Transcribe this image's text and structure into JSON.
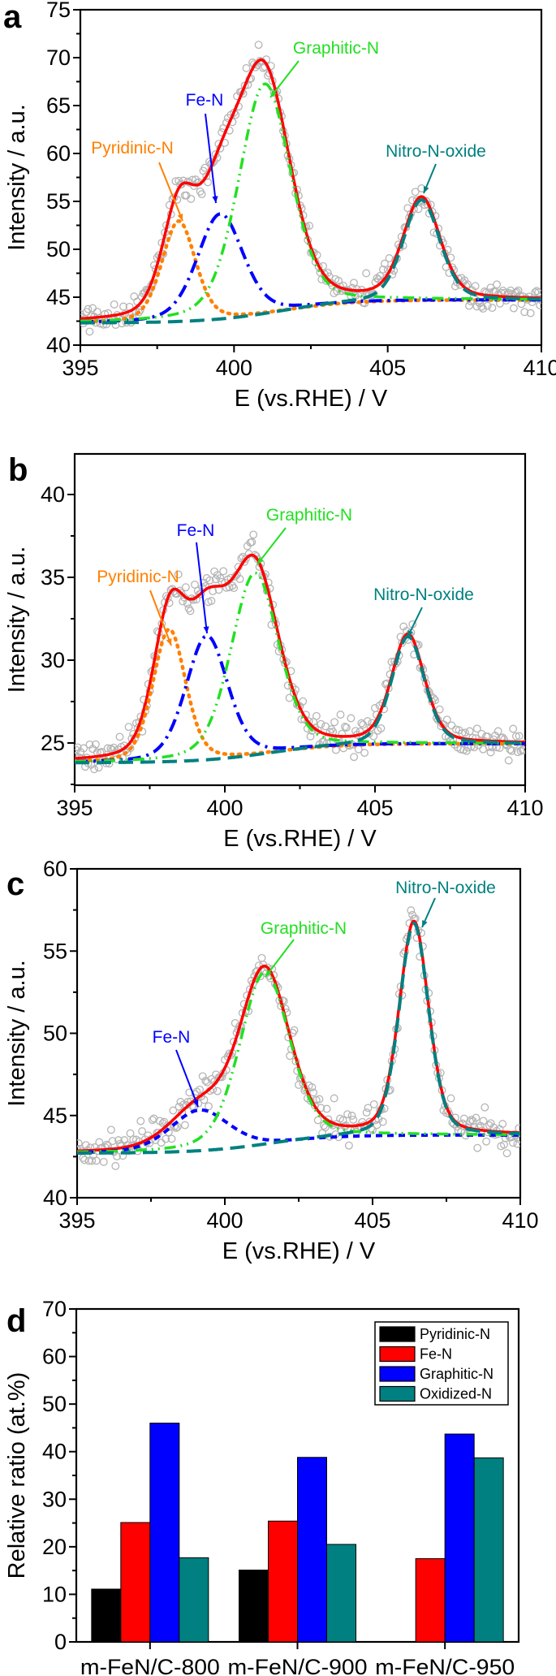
{
  "chart_data": [
    {
      "type": "line",
      "panel_label": "a",
      "xlabel": "E (vs.RHE) / V",
      "ylabel": "Intensity / a.u.",
      "xlim": [
        395,
        410
      ],
      "ylim": [
        40,
        75
      ],
      "xticks": [
        395,
        400,
        405,
        410
      ],
      "yticks": [
        40,
        45,
        50,
        55,
        60,
        65,
        70,
        75
      ],
      "baseline": {
        "start": 42.3,
        "end": 44.7
      },
      "series": [
        {
          "name": "Pyridinic-N",
          "color": "#ff8000",
          "center": 398.2,
          "amplitude": 10.5,
          "width": 0.55
        },
        {
          "name": "Fe-N",
          "color": "#0000ff",
          "center": 399.55,
          "amplitude": 11,
          "width": 0.75
        },
        {
          "name": "Graphitic-N",
          "color": "#22e022",
          "center": 401.0,
          "amplitude": 24,
          "width": 0.85
        },
        {
          "name": "Nitro-N-oxide",
          "color": "#008080",
          "center": 406.1,
          "amplitude": 10.5,
          "width": 0.6
        }
      ],
      "envelope_color": "#ff0000",
      "points_color": "#b5b5b5"
    },
    {
      "type": "line",
      "panel_label": "b",
      "xlabel": "E (vs.RHE) / V",
      "ylabel": "Intensity / a.u.",
      "xlim": [
        395,
        410
      ],
      "ylim": [
        22.45,
        42.45
      ],
      "xticks": [
        395,
        400,
        405,
        410
      ],
      "yticks": [
        25,
        30,
        35,
        40
      ],
      "baseline": {
        "start": 23.8,
        "end": 24.95
      },
      "series": [
        {
          "name": "Pyridinic-N",
          "color": "#ff8000",
          "center": 398.15,
          "amplitude": 8,
          "width": 0.55
        },
        {
          "name": "Fe-N",
          "color": "#0000ff",
          "center": 399.4,
          "amplitude": 7.5,
          "width": 0.7
        },
        {
          "name": "Graphitic-N",
          "color": "#22e022",
          "center": 401.0,
          "amplitude": 11,
          "width": 0.8
        },
        {
          "name": "Nitro-N-oxide",
          "color": "#008080",
          "center": 406.1,
          "amplitude": 6.5,
          "width": 0.55
        }
      ],
      "envelope_color": "#ff0000",
      "points_color": "#b5b5b5"
    },
    {
      "type": "line",
      "panel_label": "c",
      "xlabel": "E (vs.RHE) / V",
      "ylabel": "Intensity / a.u.",
      "xlim": [
        395,
        410
      ],
      "ylim": [
        40,
        60
      ],
      "xticks": [
        395,
        400,
        405,
        410
      ],
      "yticks": [
        40,
        45,
        50,
        55,
        60
      ],
      "baseline": {
        "start": 42.7,
        "end": 43.8
      },
      "series": [
        {
          "name": "Fe-N",
          "color": "#0000ff",
          "center": 399.15,
          "amplitude": 2.5,
          "width": 1.0
        },
        {
          "name": "Graphitic-N",
          "color": "#22e022",
          "center": 401.35,
          "amplitude": 10.5,
          "width": 0.85
        },
        {
          "name": "Nitro-N-oxide",
          "color": "#008080",
          "center": 406.4,
          "amplitude": 12.9,
          "width": 0.5
        }
      ],
      "envelope_color": "#ff0000",
      "points_color": "#b5b5b5"
    },
    {
      "type": "bar",
      "panel_label": "d",
      "xlabel": "",
      "ylabel": "Relative ratio (at.%)",
      "ylim": [
        0,
        70
      ],
      "yticks": [
        0,
        10,
        20,
        30,
        40,
        50,
        60,
        70
      ],
      "categories": [
        "m-FeN/C-800",
        "m-FeN/C-900",
        "m-FeN/C-950"
      ],
      "legend_position": "top-right",
      "series": [
        {
          "name": "Pyridinic-N",
          "color": "#000000",
          "values": [
            11.1,
            15.1,
            0
          ]
        },
        {
          "name": "Fe-N",
          "color": "#ff0000",
          "values": [
            25.1,
            25.4,
            17.5
          ]
        },
        {
          "name": "Graphitic-N",
          "color": "#0000ff",
          "values": [
            46.0,
            38.8,
            43.7
          ]
        },
        {
          "name": "Oxidized-N",
          "color": "#008080",
          "values": [
            17.7,
            20.5,
            38.7
          ]
        }
      ]
    }
  ]
}
